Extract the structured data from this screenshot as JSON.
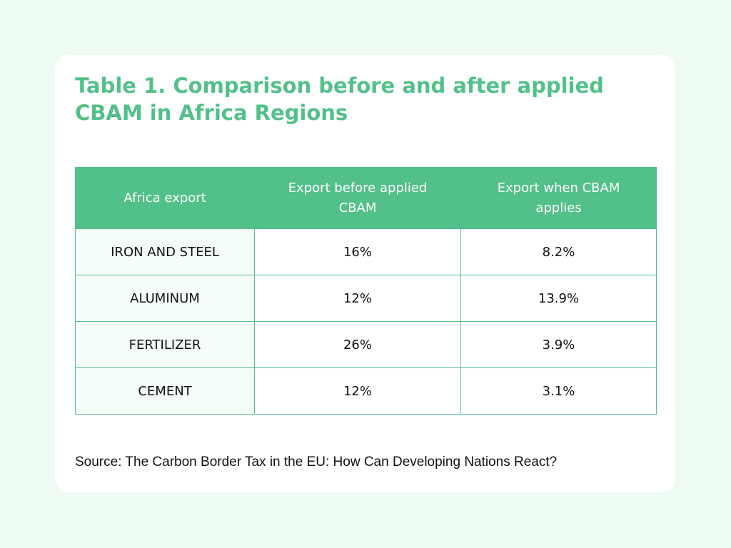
{
  "title": "Table 1. Comparison before and after applied CBAM in Africa Regions",
  "source": "Source: The Carbon Border Tax in the EU: How Can Developing Nations React?",
  "colors": {
    "accent": "#52c089",
    "background": "#edfbf3",
    "card": "#ffffff"
  },
  "chart_data": {
    "type": "table",
    "title": "Table 1. Comparison before and after applied CBAM in Africa Regions",
    "columns": [
      "Africa export",
      "Export before applied CBAM",
      "Export when CBAM applies"
    ],
    "rows": [
      [
        "IRON AND STEEL",
        "16%",
        "8.2%"
      ],
      [
        "ALUMINUM",
        "12%",
        "13.9%"
      ],
      [
        "FERTILIZER",
        "26%",
        "3.9%"
      ],
      [
        "CEMENT",
        "12%",
        "3.1%"
      ]
    ]
  }
}
